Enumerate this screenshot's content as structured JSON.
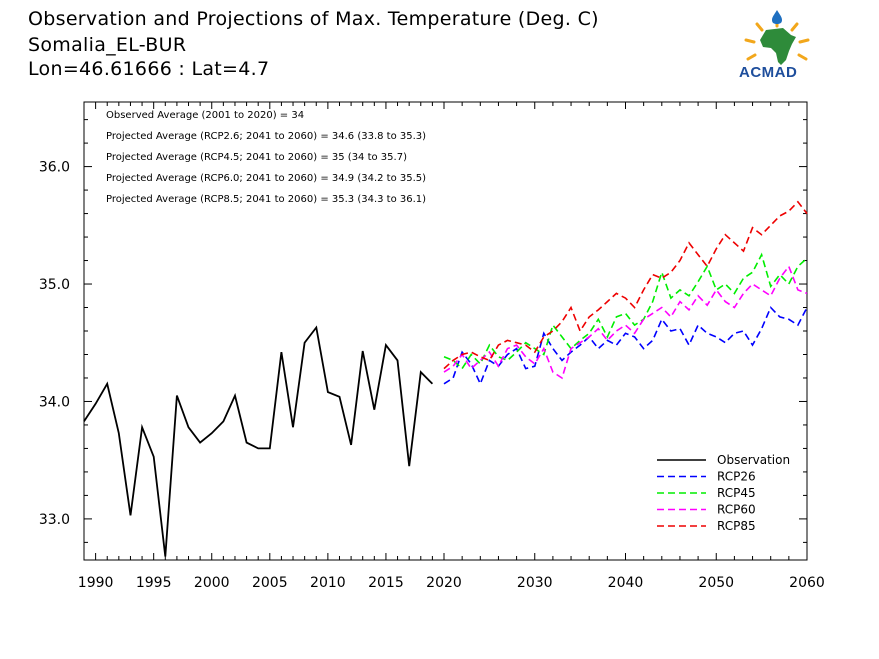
{
  "header": {
    "title_line1": "Observation and Projections of Max. Temperature (Deg. C)",
    "title_line2": "Somalia_EL-BUR",
    "title_line3": "Lon=46.61666 : Lat=4.7"
  },
  "logo": {
    "text": "ACMAD"
  },
  "chart_data": {
    "type": "line",
    "x_ticks": [
      1990,
      1995,
      2000,
      2005,
      2010,
      2015,
      2020,
      2030,
      2040,
      2050,
      2060
    ],
    "y_ticks": [
      33.0,
      34.0,
      35.0,
      36.0
    ],
    "y_tick_labels": [
      "33.0",
      "34.0",
      "35.0",
      "36.0"
    ],
    "ylim": [
      32.65,
      36.55
    ],
    "annotations": [
      "Observed Average (2001 to 2020) = 34",
      "Projected Average (RCP2.6; 2041 to 2060) = 34.6 (33.8 to 35.3)",
      "Projected Average (RCP4.5; 2041 to 2060) = 35 (34 to 35.7)",
      "Projected Average (RCP6.0; 2041 to 2060) = 34.9 (34.2 to 35.5)",
      "Projected Average (RCP8.5; 2041 to 2060) = 35.3 (34.3 to 36.1)"
    ],
    "legend_position": "bottom-right",
    "series": [
      {
        "name": "Observation",
        "color": "#000000",
        "dashed": false,
        "x": [
          1989,
          1990,
          1991,
          1992,
          1993,
          1994,
          1995,
          1996,
          1997,
          1998,
          1999,
          2000,
          2001,
          2002,
          2003,
          2004,
          2005,
          2006,
          2007,
          2008,
          2009,
          2010,
          2011,
          2012,
          2013,
          2014,
          2015,
          2016,
          2017,
          2018,
          2019
        ],
        "values": [
          33.83,
          33.98,
          34.15,
          33.73,
          33.03,
          33.78,
          33.53,
          32.68,
          34.05,
          33.78,
          33.65,
          33.73,
          33.83,
          34.05,
          33.65,
          33.6,
          33.6,
          34.42,
          33.78,
          34.5,
          34.63,
          34.08,
          34.04,
          33.63,
          34.43,
          33.93,
          34.48,
          34.35,
          33.45,
          34.25,
          34.15
        ]
      },
      {
        "name": "RCP26",
        "color": "#0000ff",
        "dashed": true,
        "x": [
          2020,
          2021,
          2022,
          2023,
          2024,
          2025,
          2026,
          2027,
          2028,
          2029,
          2030,
          2031,
          2032,
          2033,
          2034,
          2035,
          2036,
          2037,
          2038,
          2039,
          2040,
          2041,
          2042,
          2043,
          2044,
          2045,
          2046,
          2047,
          2048,
          2049,
          2050,
          2051,
          2052,
          2053,
          2054,
          2055,
          2056,
          2057,
          2058,
          2059,
          2060
        ],
        "values": [
          34.15,
          34.2,
          34.42,
          34.32,
          34.15,
          34.35,
          34.3,
          34.4,
          34.45,
          34.28,
          34.3,
          34.58,
          34.45,
          34.35,
          34.42,
          34.48,
          34.55,
          34.45,
          34.52,
          34.48,
          34.58,
          34.55,
          34.45,
          34.52,
          34.7,
          34.6,
          34.62,
          34.48,
          34.65,
          34.58,
          34.55,
          34.5,
          34.58,
          34.6,
          34.48,
          34.62,
          34.8,
          34.72,
          34.7,
          34.65,
          34.8
        ]
      },
      {
        "name": "RCP45",
        "color": "#00ee00",
        "dashed": true,
        "x": [
          2020,
          2021,
          2022,
          2023,
          2024,
          2025,
          2026,
          2027,
          2028,
          2029,
          2030,
          2031,
          2032,
          2033,
          2034,
          2035,
          2036,
          2037,
          2038,
          2039,
          2040,
          2041,
          2042,
          2043,
          2044,
          2045,
          2046,
          2047,
          2048,
          2049,
          2050,
          2051,
          2052,
          2053,
          2054,
          2055,
          2056,
          2057,
          2058,
          2059,
          2060
        ],
        "values": [
          34.38,
          34.35,
          34.28,
          34.4,
          34.32,
          34.48,
          34.38,
          34.35,
          34.42,
          34.5,
          34.45,
          34.4,
          34.65,
          34.55,
          34.45,
          34.52,
          34.58,
          34.7,
          34.55,
          34.72,
          34.75,
          34.65,
          34.7,
          34.85,
          35.1,
          34.88,
          34.95,
          34.9,
          35.02,
          35.15,
          34.95,
          35.0,
          34.92,
          35.05,
          35.1,
          35.25,
          34.98,
          35.08,
          35.0,
          35.15,
          35.22
        ]
      },
      {
        "name": "RCP60",
        "color": "#ff00ff",
        "dashed": true,
        "x": [
          2020,
          2021,
          2022,
          2023,
          2024,
          2025,
          2026,
          2027,
          2028,
          2029,
          2030,
          2031,
          2032,
          2033,
          2034,
          2035,
          2036,
          2037,
          2038,
          2039,
          2040,
          2041,
          2042,
          2043,
          2044,
          2045,
          2046,
          2047,
          2048,
          2049,
          2050,
          2051,
          2052,
          2053,
          2054,
          2055,
          2056,
          2057,
          2058,
          2059,
          2060
        ],
        "values": [
          34.25,
          34.3,
          34.4,
          34.28,
          34.35,
          34.42,
          34.3,
          34.45,
          34.48,
          34.38,
          34.32,
          34.45,
          34.25,
          34.2,
          34.45,
          34.5,
          34.55,
          34.62,
          34.52,
          34.6,
          34.65,
          34.58,
          34.7,
          34.75,
          34.8,
          34.72,
          34.85,
          34.78,
          34.9,
          34.82,
          34.95,
          34.85,
          34.8,
          34.92,
          35.0,
          34.95,
          34.9,
          35.05,
          35.15,
          34.95,
          34.92
        ]
      },
      {
        "name": "RCP85",
        "color": "#ee0000",
        "dashed": true,
        "x": [
          2020,
          2021,
          2022,
          2023,
          2024,
          2025,
          2026,
          2027,
          2028,
          2029,
          2030,
          2031,
          2032,
          2033,
          2034,
          2035,
          2036,
          2037,
          2038,
          2039,
          2040,
          2041,
          2042,
          2043,
          2044,
          2045,
          2046,
          2047,
          2048,
          2049,
          2050,
          2051,
          2052,
          2053,
          2054,
          2055,
          2056,
          2057,
          2058,
          2059,
          2060
        ],
        "values": [
          34.28,
          34.35,
          34.4,
          34.42,
          34.38,
          34.35,
          34.48,
          34.52,
          34.5,
          34.48,
          34.42,
          34.55,
          34.6,
          34.68,
          34.8,
          34.6,
          34.72,
          34.78,
          34.85,
          34.92,
          34.88,
          34.8,
          34.95,
          35.08,
          35.05,
          35.1,
          35.2,
          35.35,
          35.25,
          35.15,
          35.3,
          35.42,
          35.35,
          35.28,
          35.48,
          35.42,
          35.5,
          35.58,
          35.62,
          35.7,
          35.6
        ]
      }
    ]
  }
}
